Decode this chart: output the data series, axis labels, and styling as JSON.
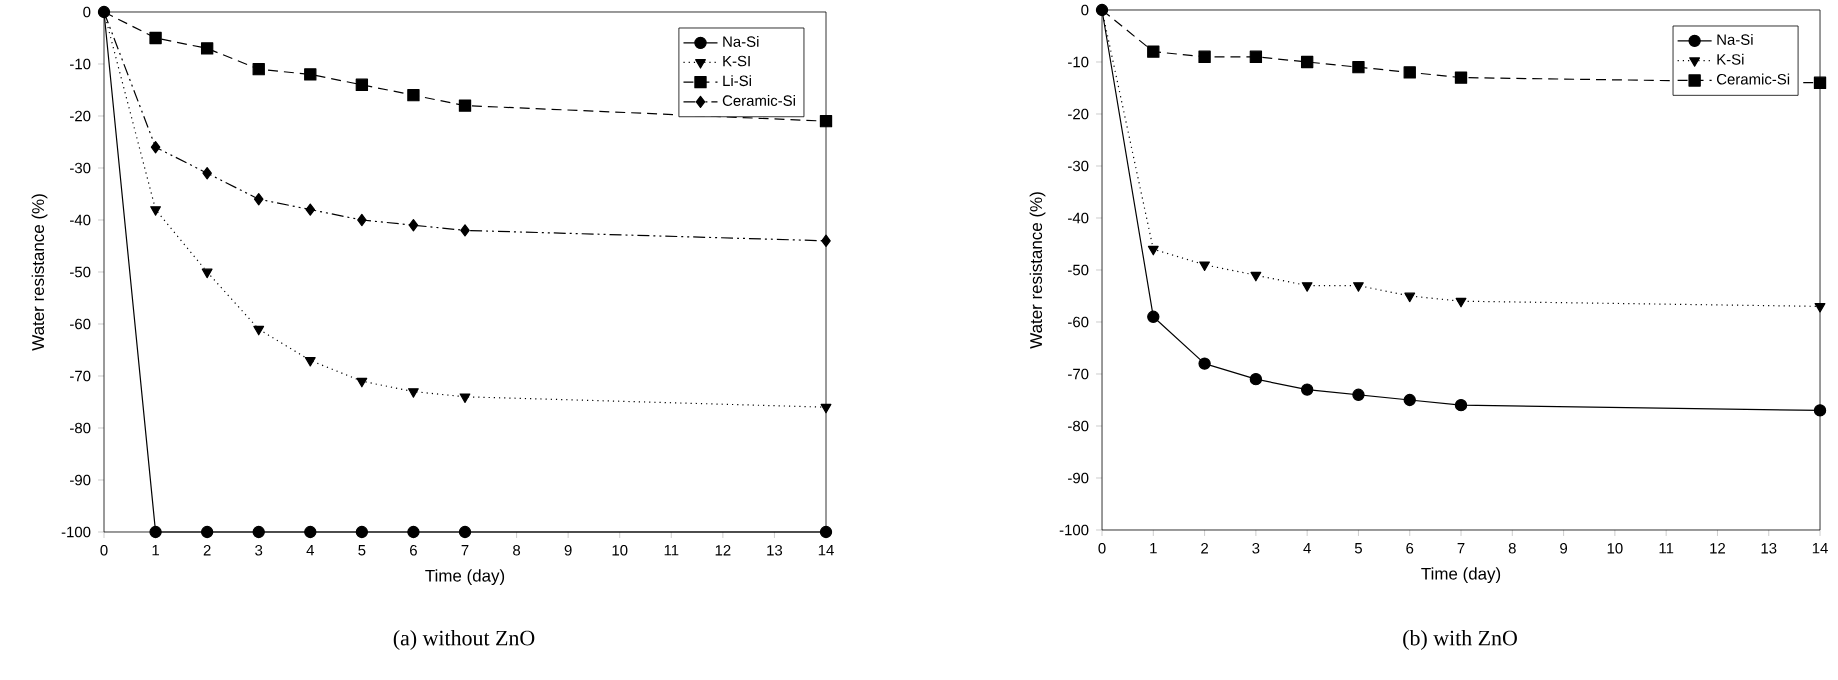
{
  "chart_data": [
    {
      "type": "line",
      "annotations": [
        "(a)  without  ZnO"
      ],
      "xlabel": "Time (day)",
      "ylabel": "Water resistance (%)",
      "x": [
        0,
        1,
        2,
        3,
        4,
        5,
        6,
        7,
        14
      ],
      "xlim": [
        0,
        14
      ],
      "ylim": [
        -100,
        0
      ],
      "xticks": [
        0,
        1,
        2,
        3,
        4,
        5,
        6,
        7,
        8,
        9,
        10,
        11,
        12,
        13,
        14
      ],
      "yticks": [
        -100,
        -90,
        -80,
        -70,
        -60,
        -50,
        -40,
        -30,
        -20,
        -10,
        0
      ],
      "legend": "top right",
      "grid": false,
      "series": [
        {
          "name": "Na-Si",
          "color": "#000000",
          "marker": "circle",
          "line_style": "solid",
          "values": [
            0,
            -100,
            -100,
            -100,
            -100,
            -100,
            -100,
            -100,
            -100
          ]
        },
        {
          "name": "K-SI",
          "color": "#000000",
          "marker": "triangle",
          "line_style": "dotted",
          "values": [
            0,
            -38,
            -50,
            -61,
            -67,
            -71,
            -73,
            -74,
            -76
          ]
        },
        {
          "name": "Li-Si",
          "color": "#000000",
          "marker": "square",
          "line_style": "dashed",
          "values": [
            0,
            -5,
            -7,
            -11,
            -12,
            -14,
            -16,
            -18,
            -21
          ]
        },
        {
          "name": "Ceramic-Si",
          "color": "#000000",
          "marker": "diamond",
          "line_style": "dashdotted",
          "values": [
            0,
            -26,
            -31,
            -36,
            -38,
            -40,
            -41,
            -42,
            -44
          ]
        }
      ]
    },
    {
      "type": "line",
      "annotations": [
        "(b)  with  ZnO"
      ],
      "xlabel": "Time (day)",
      "ylabel": "Water resistance (%)",
      "x": [
        0,
        1,
        2,
        3,
        4,
        5,
        6,
        7,
        14
      ],
      "xlim": [
        0,
        14
      ],
      "ylim": [
        -100,
        0
      ],
      "xticks": [
        0,
        1,
        2,
        3,
        4,
        5,
        6,
        7,
        8,
        9,
        10,
        11,
        12,
        13,
        14
      ],
      "yticks": [
        -100,
        -90,
        -80,
        -70,
        -60,
        -50,
        -40,
        -30,
        -20,
        -10,
        0
      ],
      "legend": "top right",
      "grid": false,
      "series": [
        {
          "name": "Na-Si",
          "color": "#000000",
          "marker": "circle",
          "line_style": "solid",
          "values": [
            0,
            -59,
            -68,
            -71,
            -73,
            -74,
            -75,
            -76,
            -77
          ]
        },
        {
          "name": "K-Si",
          "color": "#000000",
          "marker": "triangle",
          "line_style": "dotted",
          "values": [
            0,
            -46,
            -49,
            -51,
            -53,
            -53,
            -55,
            -56,
            -57
          ]
        },
        {
          "name": "Ceramic-Si",
          "color": "#000000",
          "marker": "square",
          "line_style": "dashed",
          "values": [
            0,
            -8,
            -9,
            -9,
            -10,
            -11,
            -12,
            -13,
            -14
          ]
        }
      ]
    }
  ]
}
